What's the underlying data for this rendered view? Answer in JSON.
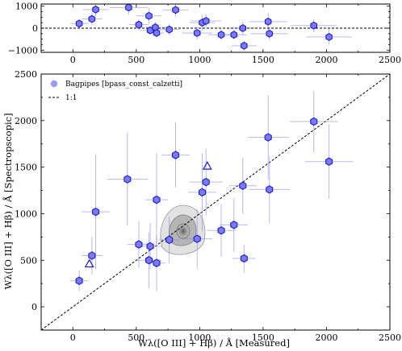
{
  "chart_data": [
    {
      "type": "scatter",
      "xlim": [
        -250,
        2500
      ],
      "ylim": [
        -1100,
        1100
      ],
      "x_ticks": [
        "0",
        "500",
        "1000",
        "1500",
        "2000",
        "2500"
      ],
      "y_ticks": [
        "1000",
        "0",
        "−1000"
      ],
      "zero_line": "dashed",
      "points": [
        {
          "x": 50,
          "y": 210,
          "xerr": 70,
          "yerr": 190
        },
        {
          "x": 150,
          "y": 420,
          "xerr": 80,
          "yerr": 280
        },
        {
          "x": 180,
          "y": 850,
          "xerr": 100,
          "yerr": 300
        },
        {
          "x": 440,
          "y": 940,
          "xerr": 150,
          "yerr": 330
        },
        {
          "x": 520,
          "y": 160,
          "xerr": 80,
          "yerr": 250
        },
        {
          "x": 600,
          "y": 560,
          "xerr": 100,
          "yerr": 350
        },
        {
          "x": 610,
          "y": -100,
          "xerr": 80,
          "yerr": 180
        },
        {
          "x": 650,
          "y": 40,
          "xerr": 80,
          "yerr": 250
        },
        {
          "x": 660,
          "y": -220,
          "xerr": 60,
          "yerr": 180
        },
        {
          "x": 760,
          "y": -60,
          "xerr": 80,
          "yerr": 250
        },
        {
          "x": 810,
          "y": 830,
          "xerr": 100,
          "yerr": 300
        },
        {
          "x": 980,
          "y": -220,
          "xerr": 120,
          "yerr": 300
        },
        {
          "x": 1020,
          "y": 250,
          "xerr": 100,
          "yerr": 350
        },
        {
          "x": 1050,
          "y": 330,
          "xerr": 120,
          "yerr": 300
        },
        {
          "x": 1170,
          "y": -300,
          "xerr": 100,
          "yerr": 250
        },
        {
          "x": 1270,
          "y": -300,
          "xerr": 100,
          "yerr": 220
        },
        {
          "x": 1340,
          "y": 0,
          "xerr": 100,
          "yerr": 300
        },
        {
          "x": 1350,
          "y": -800,
          "xerr": 100,
          "yerr": 220
        },
        {
          "x": 1540,
          "y": 300,
          "xerr": 150,
          "yerr": 400
        },
        {
          "x": 1550,
          "y": -250,
          "xerr": 150,
          "yerr": 300
        },
        {
          "x": 1900,
          "y": 120,
          "xerr": 180,
          "yerr": 300
        },
        {
          "x": 2020,
          "y": -400,
          "xerr": 180,
          "yerr": 350
        }
      ]
    },
    {
      "type": "scatter",
      "xlim": [
        -250,
        2500
      ],
      "ylim": [
        -250,
        2500
      ],
      "xlabel": "Wλ([O III] + Hβ) / Å  [Measured]",
      "ylabel": "Wλ([O III] + Hβ) / Å  [Spectropscopic]",
      "x_ticks": [
        "0",
        "500",
        "1000",
        "1500",
        "2000",
        "2500"
      ],
      "y_ticks": [
        "0",
        "500",
        "1000",
        "1500",
        "2000",
        "2500"
      ],
      "legend_position": "top-left",
      "legend": [
        {
          "label": "Bagpipes [bpass_const_calzetti]",
          "marker": "circle"
        },
        {
          "label": "1:1",
          "marker": "dashed-line"
        }
      ],
      "one_to_one_line": true,
      "density_contour_center": {
        "x": 870,
        "y": 830
      },
      "series": [
        {
          "name": "Bagpipes [bpass_const_calzetti]",
          "marker": "hexagon",
          "points": [
            {
              "x": 50,
              "y": 280,
              "xerr": 70,
              "yerr": 110
            },
            {
              "x": 150,
              "y": 550,
              "xerr": 80,
              "yerr": 200
            },
            {
              "x": 180,
              "y": 1020,
              "xerr": 110,
              "yerr": 620
            },
            {
              "x": 430,
              "y": 1370,
              "xerr": 160,
              "yerr": 500
            },
            {
              "x": 520,
              "y": 670,
              "xerr": 90,
              "yerr": 250
            },
            {
              "x": 600,
              "y": 500,
              "xerr": 100,
              "yerr": 300
            },
            {
              "x": 610,
              "y": 650,
              "xerr": 90,
              "yerr": 250
            },
            {
              "x": 660,
              "y": 1150,
              "xerr": 90,
              "yerr": 500
            },
            {
              "x": 660,
              "y": 470,
              "xerr": 70,
              "yerr": 300
            },
            {
              "x": 760,
              "y": 720,
              "xerr": 80,
              "yerr": 250
            },
            {
              "x": 810,
              "y": 1630,
              "xerr": 110,
              "yerr": 350
            },
            {
              "x": 980,
              "y": 730,
              "xerr": 120,
              "yerr": 320
            },
            {
              "x": 1020,
              "y": 1230,
              "xerr": 110,
              "yerr": 420
            },
            {
              "x": 1050,
              "y": 1340,
              "xerr": 130,
              "yerr": 360
            },
            {
              "x": 1170,
              "y": 820,
              "xerr": 110,
              "yerr": 280
            },
            {
              "x": 1270,
              "y": 880,
              "xerr": 110,
              "yerr": 290
            },
            {
              "x": 1340,
              "y": 1300,
              "xerr": 110,
              "yerr": 300
            },
            {
              "x": 1350,
              "y": 520,
              "xerr": 90,
              "yerr": 150
            },
            {
              "x": 1540,
              "y": 1820,
              "xerr": 160,
              "yerr": 450
            },
            {
              "x": 1550,
              "y": 1260,
              "xerr": 160,
              "yerr": 360
            },
            {
              "x": 1900,
              "y": 1990,
              "xerr": 190,
              "yerr": 330
            },
            {
              "x": 2020,
              "y": 1560,
              "xerr": 190,
              "yerr": 400
            }
          ]
        },
        {
          "name": "",
          "marker": "triangle-open",
          "points": [
            {
              "x": 130,
              "y": 460
            },
            {
              "x": 1060,
              "y": 1510
            }
          ]
        }
      ]
    }
  ]
}
